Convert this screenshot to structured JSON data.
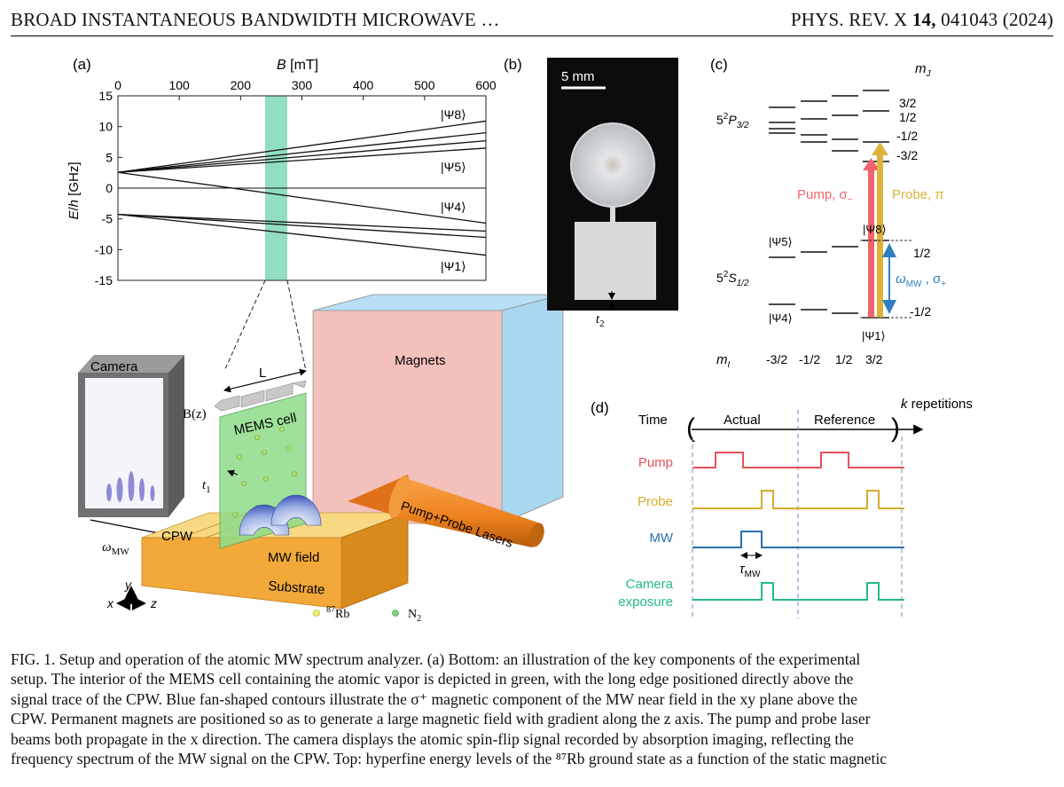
{
  "header": {
    "left": "BROAD INSTANTANEOUS BANDWIDTH MICROWAVE …",
    "right_journal": "PHYS. REV. X ",
    "right_volume": "14,",
    "right_rest": " 041043 (2024)"
  },
  "panel_a": {
    "label": "(a)",
    "chart_data": {
      "type": "line",
      "xlabel": "B [mT]",
      "ylabel": "E/h [GHz]",
      "xlim": [
        0,
        600
      ],
      "ylim": [
        -15,
        15
      ],
      "xticks": [
        "0",
        "100",
        "200",
        "300",
        "400",
        "500",
        "600"
      ],
      "yticks": [
        "15",
        "10",
        "5",
        "0",
        "-5",
        "-10",
        "-15"
      ],
      "highlight_band_mT": [
        245,
        280
      ],
      "series": [
        {
          "name": "|Ψ8⟩",
          "x": [
            0,
            600
          ],
          "y": [
            2.56,
            10.9
          ]
        },
        {
          "name": "",
          "x": [
            0,
            600
          ],
          "y": [
            2.56,
            9.0
          ]
        },
        {
          "name": "",
          "x": [
            0,
            600
          ],
          "y": [
            2.56,
            7.7
          ]
        },
        {
          "name": "|Ψ5⟩",
          "x": [
            0,
            600
          ],
          "y": [
            2.56,
            6.5
          ]
        },
        {
          "name": "|Ψ4⟩",
          "x": [
            0,
            600
          ],
          "y": [
            2.56,
            -5.7
          ]
        },
        {
          "name": "",
          "x": [
            0,
            600
          ],
          "y": [
            -4.27,
            -7.0
          ]
        },
        {
          "name": "",
          "x": [
            0,
            600
          ],
          "y": [
            -4.27,
            -8.0
          ]
        },
        {
          "name": "|Ψ1⟩",
          "x": [
            0,
            600
          ],
          "y": [
            -4.27,
            -10.9
          ]
        }
      ],
      "state_labels": [
        "|Ψ8⟩",
        "|Ψ5⟩",
        "|Ψ4⟩",
        "|Ψ1⟩"
      ]
    },
    "illustration": {
      "camera": "Camera",
      "omega": "ω",
      "omega_sub": "MW",
      "L": "L",
      "Bz": "B(z)",
      "mems": "MEMS cell",
      "t1": "t",
      "t1_sub": "1",
      "magnets": "Magnets",
      "cpw": "CPW",
      "mw_field": "MW field",
      "lasers": "Pump+Probe Lasers",
      "substrate": "Substrate",
      "axis_x": "x",
      "axis_y": "y",
      "axis_z": "z",
      "legend_rb": "87",
      "legend_rb_text": "Rb",
      "legend_n2": "N",
      "legend_n2_sub": "2",
      "colors": {
        "cell": "#8fdc8a",
        "magnet": "#f4c0bb",
        "magnet_side": "#b8dff4",
        "substrate": "#f2a93a",
        "cpw": "#f7d98c"
      }
    }
  },
  "panel_b": {
    "label": "(b)",
    "scale": "5 mm",
    "t2": "t",
    "t2_sub": "2"
  },
  "panel_c": {
    "label": "(c)",
    "mJ": "m",
    "mJ_sub": "J",
    "mJ_values": [
      "3/2",
      "1/2",
      "-1/2",
      "-3/2"
    ],
    "P_level": "5",
    "P_sup": "2",
    "P_name": "P",
    "P_sub": "3/2",
    "S_level": "5",
    "S_sup": "2",
    "S_name": "S",
    "S_sub": "1/2",
    "mS_values": [
      "1/2",
      "-1/2"
    ],
    "pump": "Pump, σ",
    "pump_sub": "−",
    "probe": "Probe, π",
    "mw": "ω",
    "mw_sub": "MW",
    "mw_tail": " , σ",
    "mw_tail_sub": "+",
    "psi8": "|Ψ8⟩",
    "psi5": "|Ψ5⟩",
    "psi4": "|Ψ4⟩",
    "psi1": "|Ψ1⟩",
    "mI": "m",
    "mI_sub": "I",
    "mI_values": [
      "-3/2",
      "-1/2",
      "1/2",
      "3/2"
    ],
    "colors": {
      "pump": "#f0636b",
      "probe": "#dcb23a",
      "mw": "#2f7ec0"
    }
  },
  "panel_d": {
    "label": "(d)",
    "time": "Time",
    "actual": "Actual",
    "reference": "Reference",
    "repetitions_k": "k",
    "repetitions": " repetitions",
    "rows": [
      "Pump",
      "Probe",
      "MW",
      "Camera",
      "exposure"
    ],
    "tau": "τ",
    "tau_sub": "MW",
    "colors": {
      "pump": "#e8515a",
      "probe": "#d4ad2e",
      "mw": "#2b6fb0",
      "camera": "#25b88f"
    }
  },
  "caption": {
    "lines": [
      "FIG. 1.    Setup and operation of the atomic MW spectrum analyzer. (a) Bottom: an illustration of the key components of the experimental",
      "setup. The interior of the MEMS cell containing the atomic vapor is depicted in green, with the long edge positioned directly above the",
      "signal trace of the CPW. Blue fan-shaped contours illustrate the σ⁺ magnetic component of the MW near field in the xy plane above the",
      "CPW. Permanent magnets are positioned so as to generate a large magnetic field with gradient along the z axis. The pump and probe laser",
      "beams both propagate in the x direction. The camera displays the atomic spin-flip signal recorded by absorption imaging, reflecting the",
      "frequency spectrum of the MW signal on the CPW. Top: hyperfine energy levels of the ⁸⁷Rb ground state as a function of the static magnetic"
    ]
  }
}
